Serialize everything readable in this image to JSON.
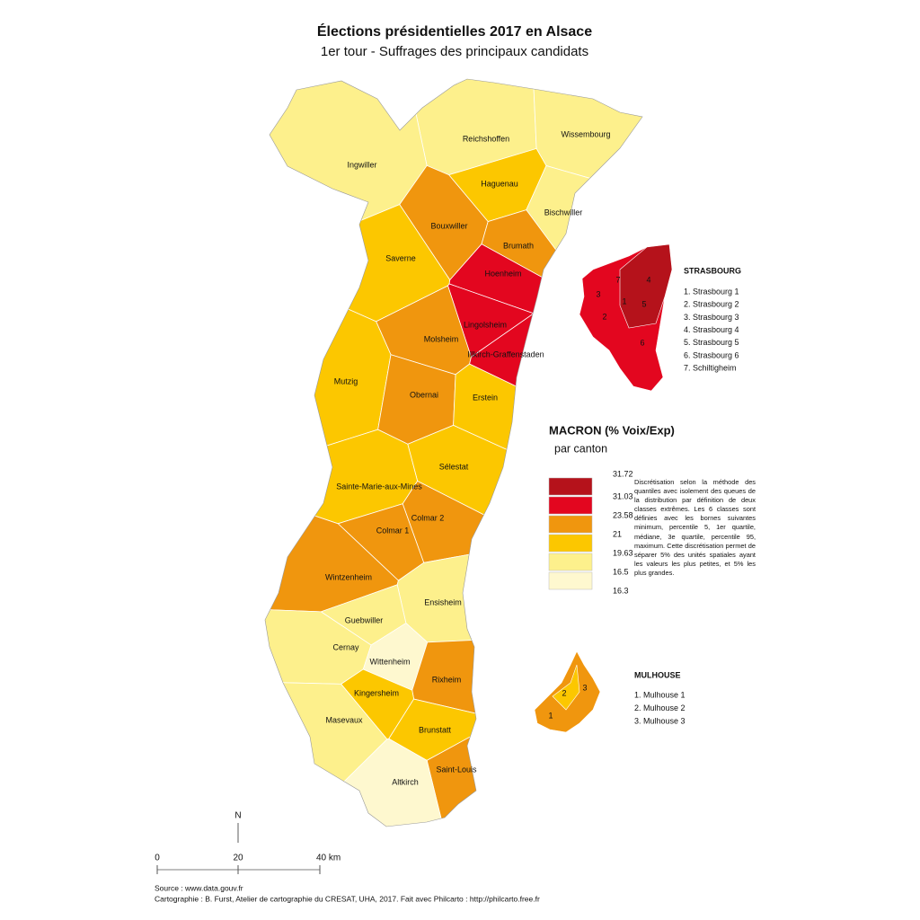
{
  "header": {
    "title": "Élections présidentielles 2017 en Alsace",
    "subtitle": "1er tour - Suffrages des principaux candidats"
  },
  "map": {
    "cantons": [
      {
        "name": "Reichshoffen",
        "color": "#fdf08c"
      },
      {
        "name": "Wissembourg",
        "color": "#fdf08c"
      },
      {
        "name": "Ingwiller",
        "color": "#fdf08c"
      },
      {
        "name": "Haguenau",
        "color": "#fcc700"
      },
      {
        "name": "Bischwiller",
        "color": "#fdf08c"
      },
      {
        "name": "Bouxwiller",
        "color": "#f0960e"
      },
      {
        "name": "Brumath",
        "color": "#f0960e"
      },
      {
        "name": "Saverne",
        "color": "#fcc700"
      },
      {
        "name": "Hoenheim",
        "color": "#e3061f"
      },
      {
        "name": "Lingolsheim",
        "color": "#e3061f"
      },
      {
        "name": "Molsheim",
        "color": "#f0960e"
      },
      {
        "name": "Illkirch-Graffenstaden",
        "color": "#e3061f"
      },
      {
        "name": "Mutzig",
        "color": "#fcc700"
      },
      {
        "name": "Obernai",
        "color": "#f0960e"
      },
      {
        "name": "Erstein",
        "color": "#fcc700"
      },
      {
        "name": "Sélestat",
        "color": "#fcc700"
      },
      {
        "name": "Sainte-Marie-aux-Mines",
        "color": "#fcc700"
      },
      {
        "name": "Colmar 2",
        "color": "#f0960e"
      },
      {
        "name": "Colmar 1",
        "color": "#f0960e"
      },
      {
        "name": "Wintzenheim",
        "color": "#f0960e"
      },
      {
        "name": "Ensisheim",
        "color": "#fdf08c"
      },
      {
        "name": "Guebwiller",
        "color": "#fdf08c"
      },
      {
        "name": "Cernay",
        "color": "#fdf08c"
      },
      {
        "name": "Wittenheim",
        "color": "#fef8cf"
      },
      {
        "name": "Rixheim",
        "color": "#f0960e"
      },
      {
        "name": "Kingersheim",
        "color": "#fcc700"
      },
      {
        "name": "Masevaux",
        "color": "#fdf08c"
      },
      {
        "name": "Brunstatt",
        "color": "#fcc700"
      },
      {
        "name": "Saint-Louis",
        "color": "#f0960e"
      },
      {
        "name": "Altkirch",
        "color": "#fef8cf"
      }
    ]
  },
  "strasbourg_inset": {
    "title": "STRASBOURG",
    "numbers": [
      "1",
      "2",
      "3",
      "4",
      "5",
      "6",
      "7"
    ],
    "items": [
      "1. Strasbourg 1",
      "2. Strasbourg 2",
      "3. Strasbourg 3",
      "4. Strasbourg 4",
      "5. Strasbourg 5",
      "6. Strasbourg 6",
      "7. Schiltigheim"
    ],
    "colors": [
      "#e3061f",
      "#b5121b"
    ]
  },
  "mulhouse_inset": {
    "title": "MULHOUSE",
    "numbers": [
      "1",
      "2",
      "3"
    ],
    "items": [
      "1. Mulhouse 1",
      "2. Mulhouse 2",
      "3. Mulhouse 3"
    ],
    "colors": [
      "#f0960e",
      "#fcc700"
    ]
  },
  "legend": {
    "title": "MACRON (% Voix/Exp)",
    "subtitle": "par canton",
    "bounds": [
      31.72,
      31.03,
      23.58,
      21,
      19.63,
      16.5,
      16.3
    ],
    "colors": [
      "#b5121b",
      "#e3061f",
      "#f0960e",
      "#fcc700",
      "#fdf08c",
      "#fef8cf"
    ],
    "description": "Discrétisation selon la méthode des quantiles avec isolement des queues de la distribution par définition de deux classes extrêmes. Les 6 classes sont définies avec les bornes suivantes minimum, percentile 5, 1er quartile, médiane, 3e quartile, percentile 95, maximum. Cette discrétisation permet de séparer 5% des unités spatiales ayant les valeurs les plus petites, et 5% les plus grandes."
  },
  "scale": {
    "north": "N",
    "ticks": [
      "0",
      "20",
      "40 km"
    ]
  },
  "footer": {
    "source": "Source : www.data.gouv.fr",
    "credit": "Cartographie : B. Furst, Atelier de cartographie du CRESAT, UHA, 2017. Fait avec Philcarto : http://philcarto.free.fr"
  }
}
